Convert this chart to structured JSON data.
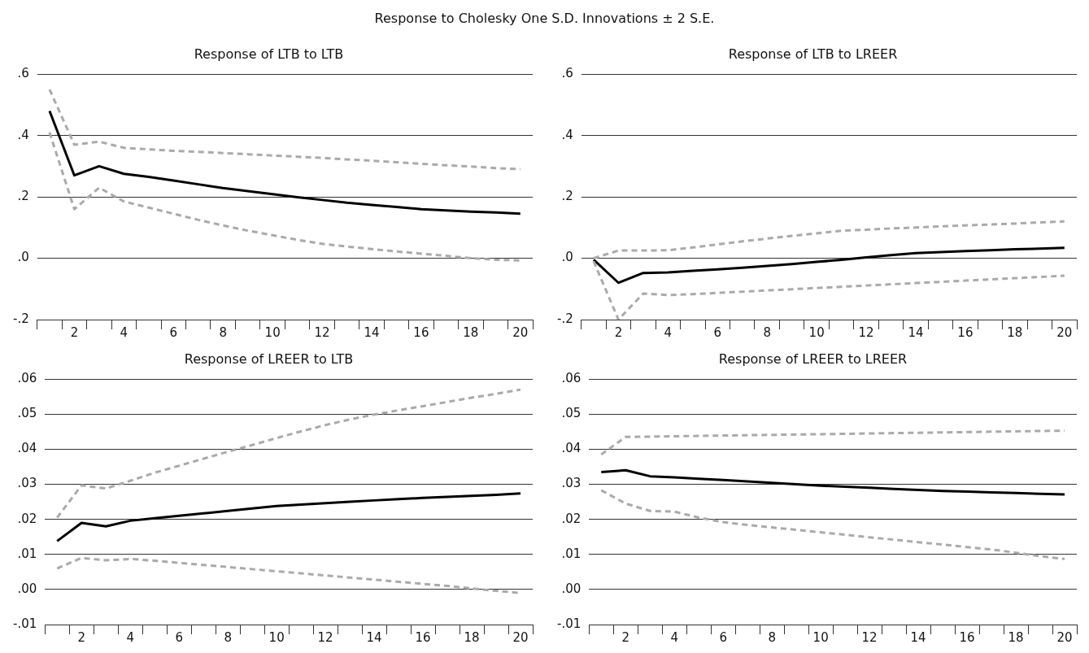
{
  "chart_data": [
    {
      "type": "line",
      "title": "Response of LTB to LTB",
      "annotations": [
        "Response to Cholesky One S.D. Innovations ± 2 S.E."
      ],
      "categories": [
        null,
        "2",
        null,
        "4",
        null,
        "6",
        null,
        "8",
        null,
        "10",
        null,
        "12",
        null,
        "14",
        null,
        "16",
        null,
        "18",
        null,
        "20"
      ],
      "ylim": [
        -0.2,
        0.6
      ],
      "yticks": [
        {
          "value": -0.2,
          "label": "-.2"
        },
        {
          "value": 0,
          "label": ".0"
        },
        {
          "value": 0.2,
          "label": ".2"
        },
        {
          "value": 0.4,
          "label": ".4"
        },
        {
          "value": 0.6,
          "label": ".6"
        }
      ],
      "grid": "y",
      "legend": false,
      "marker": "none",
      "series": [
        {
          "color": "#aaaaaa",
          "line_style": "dashed",
          "values": [
            0.55,
            0.37,
            0.38,
            0.36,
            0.355,
            0.35,
            0.347,
            0.343,
            0.339,
            0.335,
            0.331,
            0.327,
            0.322,
            0.318,
            0.313,
            0.308,
            0.303,
            0.299,
            0.294,
            0.29
          ]
        },
        {
          "color": "#aaaaaa",
          "line_style": "dashed",
          "values": [
            0.41,
            0.16,
            0.23,
            0.185,
            0.165,
            0.145,
            0.125,
            0.107,
            0.09,
            0.075,
            0.06,
            0.047,
            0.038,
            0.03,
            0.022,
            0.015,
            0.008,
            0.0,
            -0.005,
            -0.007
          ]
        },
        {
          "color": "#000000",
          "line_style": "solid",
          "values": [
            0.48,
            0.27,
            0.3,
            0.275,
            0.265,
            0.253,
            0.241,
            0.229,
            0.219,
            0.209,
            0.199,
            0.19,
            0.181,
            0.174,
            0.167,
            0.16,
            0.156,
            0.152,
            0.149,
            0.145
          ]
        }
      ]
    },
    {
      "type": "line",
      "title": "Response of LTB to LREER",
      "categories": [
        null,
        "2",
        null,
        "4",
        null,
        "6",
        null,
        "8",
        null,
        "10",
        null,
        "12",
        null,
        "14",
        null,
        "16",
        null,
        "18",
        null,
        "20"
      ],
      "ylim": [
        -0.2,
        0.6
      ],
      "yticks": [
        {
          "value": -0.2,
          "label": "-.2"
        },
        {
          "value": 0,
          "label": ".0"
        },
        {
          "value": 0.2,
          "label": ".2"
        },
        {
          "value": 0.4,
          "label": ".4"
        },
        {
          "value": 0.6,
          "label": ".6"
        }
      ],
      "grid": "y",
      "legend": false,
      "marker": "none",
      "series": [
        {
          "color": "#aaaaaa",
          "line_style": "dashed",
          "values": [
            0.0,
            0.025,
            0.025,
            0.026,
            0.035,
            0.045,
            0.055,
            0.064,
            0.073,
            0.081,
            0.09,
            0.093,
            0.097,
            0.1,
            0.104,
            0.107,
            0.11,
            0.113,
            0.117,
            0.12
          ]
        },
        {
          "color": "#aaaaaa",
          "line_style": "dashed",
          "values": [
            -0.01,
            -0.2,
            -0.115,
            -0.12,
            -0.117,
            -0.113,
            -0.109,
            -0.105,
            -0.101,
            -0.097,
            -0.093,
            -0.089,
            -0.085,
            -0.081,
            -0.077,
            -0.073,
            -0.069,
            -0.065,
            -0.061,
            -0.057
          ]
        },
        {
          "color": "#000000",
          "line_style": "solid",
          "values": [
            -0.005,
            -0.08,
            -0.048,
            -0.046,
            -0.041,
            -0.036,
            -0.031,
            -0.025,
            -0.019,
            -0.012,
            -0.005,
            0.003,
            0.01,
            0.017,
            0.02,
            0.023,
            0.026,
            0.029,
            0.031,
            0.034
          ]
        }
      ]
    },
    {
      "type": "line",
      "title": "Response of LREER to LTB",
      "categories": [
        null,
        "2",
        null,
        "4",
        null,
        "6",
        null,
        "8",
        null,
        "10",
        null,
        "12",
        null,
        "14",
        null,
        "16",
        null,
        "18",
        null,
        "20"
      ],
      "ylim": [
        -0.01,
        0.06
      ],
      "yticks": [
        {
          "value": -0.01,
          "label": "-.01"
        },
        {
          "value": 0,
          "label": ".00"
        },
        {
          "value": 0.01,
          "label": ".01"
        },
        {
          "value": 0.02,
          "label": ".02"
        },
        {
          "value": 0.03,
          "label": ".03"
        },
        {
          "value": 0.04,
          "label": ".04"
        },
        {
          "value": 0.05,
          "label": ".05"
        },
        {
          "value": 0.06,
          "label": ".06"
        }
      ],
      "grid": "y",
      "legend": false,
      "marker": "none",
      "series": [
        {
          "color": "#aaaaaa",
          "line_style": "dashed",
          "values": [
            0.0205,
            0.0297,
            0.0288,
            0.031,
            0.0333,
            0.0353,
            0.0373,
            0.0393,
            0.0412,
            0.0432,
            0.0451,
            0.0469,
            0.0485,
            0.0499,
            0.0511,
            0.0523,
            0.0535,
            0.0547,
            0.0558,
            0.057
          ]
        },
        {
          "color": "#aaaaaa",
          "line_style": "dashed",
          "values": [
            0.006,
            0.009,
            0.0083,
            0.0087,
            0.0082,
            0.0076,
            0.007,
            0.0064,
            0.0058,
            0.0052,
            0.0046,
            0.004,
            0.0034,
            0.0028,
            0.0022,
            0.0016,
            0.001,
            0.0003,
            -0.0004,
            -0.001
          ]
        },
        {
          "color": "#000000",
          "line_style": "solid",
          "values": [
            0.0138,
            0.019,
            0.018,
            0.0196,
            0.0203,
            0.021,
            0.0217,
            0.0224,
            0.0231,
            0.0238,
            0.0242,
            0.0246,
            0.025,
            0.0254,
            0.0258,
            0.0261,
            0.0264,
            0.0267,
            0.027,
            0.0274
          ]
        }
      ]
    },
    {
      "type": "line",
      "title": "Response of LREER to LREER",
      "categories": [
        null,
        "2",
        null,
        "4",
        null,
        "6",
        null,
        "8",
        null,
        "10",
        null,
        "12",
        null,
        "14",
        null,
        "16",
        null,
        "18",
        null,
        "20"
      ],
      "ylim": [
        -0.01,
        0.06
      ],
      "yticks": [
        {
          "value": -0.01,
          "label": "-.01"
        },
        {
          "value": 0,
          "label": ".00"
        },
        {
          "value": 0.01,
          "label": ".01"
        },
        {
          "value": 0.02,
          "label": ".02"
        },
        {
          "value": 0.03,
          "label": ".03"
        },
        {
          "value": 0.04,
          "label": ".04"
        },
        {
          "value": 0.05,
          "label": ".05"
        },
        {
          "value": 0.06,
          "label": ".06"
        }
      ],
      "grid": "y",
      "legend": false,
      "marker": "none",
      "series": [
        {
          "color": "#aaaaaa",
          "line_style": "dashed",
          "values": [
            0.0385,
            0.0435,
            0.0436,
            0.0437,
            0.0438,
            0.0439,
            0.044,
            0.0441,
            0.0442,
            0.0443,
            0.0444,
            0.0445,
            0.0446,
            0.0447,
            0.0448,
            0.0449,
            0.045,
            0.0451,
            0.0452,
            0.0453
          ]
        },
        {
          "color": "#aaaaaa",
          "line_style": "dashed",
          "values": [
            0.0283,
            0.0245,
            0.0224,
            0.0222,
            0.0205,
            0.0192,
            0.0184,
            0.0177,
            0.017,
            0.0163,
            0.0156,
            0.0149,
            0.0142,
            0.0135,
            0.0128,
            0.0121,
            0.0114,
            0.0105,
            0.0095,
            0.0087
          ]
        },
        {
          "color": "#000000",
          "line_style": "solid",
          "values": [
            0.0335,
            0.034,
            0.0323,
            0.032,
            0.0316,
            0.0312,
            0.0308,
            0.0304,
            0.03,
            0.0296,
            0.0293,
            0.029,
            0.0287,
            0.0284,
            0.0281,
            0.0279,
            0.0277,
            0.0275,
            0.0273,
            0.0271
          ]
        }
      ]
    }
  ]
}
